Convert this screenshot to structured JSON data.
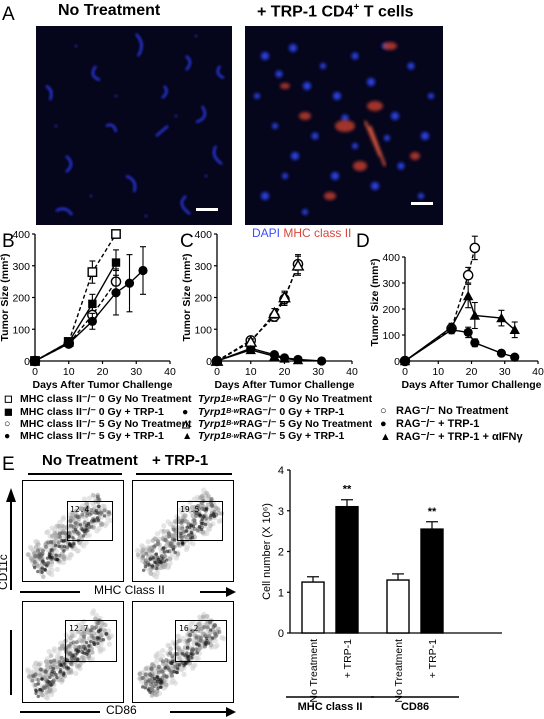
{
  "panel_a": {
    "letter": "A",
    "left_title": "No Treatment",
    "right_title_prefix": "+ TRP-1 CD4",
    "right_title_sup": "+",
    "right_title_suffix": " T cells",
    "stain_dapi": "DAPI",
    "stain_mhc": "MHC class II",
    "colors": {
      "dapi": "#3c4dff",
      "mhc": "#d8463a"
    }
  },
  "panel_b": {
    "letter": "B",
    "legend": [
      "MHC class II⁻/⁻ 0 Gy No Treatment",
      "MHC class II⁻/⁻ 0 Gy + TRP-1",
      "MHC class II⁻/⁻ 5 Gy No Treatment",
      "MHC class II⁻/⁻ 5 Gy + TRP-1"
    ]
  },
  "panel_c": {
    "letter": "C",
    "legend_prefix": "Tyrp1",
    "legend_sup": "B-w",
    "legend": [
      "RAG⁻/⁻ 0 Gy No Treatment",
      "RAG⁻/⁻ 0 Gy + TRP-1",
      "RAG⁻/⁻ 5 Gy No Treatment",
      "RAG⁻/⁻ 5 Gy + TRP-1"
    ]
  },
  "panel_d": {
    "letter": "D",
    "legend": [
      "RAG⁻/⁻ No Treatment",
      "RAG⁻/⁻ + TRP-1",
      "RAG⁻/⁻ + TRP-1 + αIFNγ"
    ]
  },
  "growth_axes": {
    "ylabel": "Tumor Size (mm²)",
    "xlabel": "Days After Tumor Challenge"
  },
  "panel_e": {
    "letter": "E",
    "col_no_treatment": "No Treatment",
    "col_trp1": "+ TRP-1",
    "ylabel_facs": "CD11c",
    "xlabel_top": "MHC Class II",
    "xlabel_bottom": "CD86",
    "gates": [
      "12.4",
      "19.5",
      "12.7",
      "16.2"
    ]
  },
  "chart_data": [
    {
      "type": "line",
      "panel": "B",
      "xlabel": "Days After Tumor Challenge",
      "ylabel": "Tumor Size (mm²)",
      "xlim": [
        0,
        40
      ],
      "ylim": [
        0,
        400
      ],
      "xticks": [
        0,
        10,
        20,
        30,
        40
      ],
      "yticks": [
        0,
        100,
        200,
        300,
        400
      ],
      "series": [
        {
          "name": "MHC class II⁻/⁻ 0 Gy No Treatment",
          "marker": "open-square",
          "dash": true,
          "x": [
            0,
            10,
            17,
            24
          ],
          "y": [
            0,
            60,
            280,
            400
          ],
          "err": [
            0,
            8,
            35,
            0
          ]
        },
        {
          "name": "MHC class II⁻/⁻ 0 Gy + TRP-1",
          "marker": "filled-square",
          "dash": false,
          "x": [
            0,
            10,
            17,
            24
          ],
          "y": [
            0,
            60,
            180,
            310
          ],
          "err": [
            0,
            8,
            30,
            40
          ]
        },
        {
          "name": "MHC class II⁻/⁻ 5 Gy No Treatment",
          "marker": "open-circle",
          "dash": true,
          "x": [
            0,
            10,
            17,
            24
          ],
          "y": [
            0,
            55,
            145,
            250
          ],
          "err": [
            0,
            8,
            25,
            40
          ]
        },
        {
          "name": "MHC class II⁻/⁻ 5 Gy + TRP-1",
          "marker": "filled-circle",
          "dash": false,
          "x": [
            0,
            10,
            17,
            24,
            28,
            32
          ],
          "y": [
            0,
            55,
            125,
            215,
            245,
            285
          ],
          "err": [
            0,
            8,
            25,
            70,
            90,
            75
          ]
        }
      ]
    },
    {
      "type": "line",
      "panel": "C",
      "xlabel": "Days After Tumor Challenge",
      "ylabel": "Tumor Size (mm²)",
      "xlim": [
        0,
        40
      ],
      "ylim": [
        0,
        400
      ],
      "xticks": [
        0,
        10,
        20,
        30,
        40
      ],
      "yticks": [
        0,
        100,
        200,
        300,
        400
      ],
      "series": [
        {
          "name": "Tyrp1 B-w RAG⁻/⁻ 0 Gy No Treatment",
          "marker": "open-circle",
          "dash": true,
          "x": [
            0,
            10,
            17,
            20,
            24
          ],
          "y": [
            0,
            65,
            140,
            195,
            305
          ],
          "err": [
            0,
            10,
            15,
            20,
            30
          ]
        },
        {
          "name": "Tyrp1 B-w RAG⁻/⁻ 0 Gy + TRP-1",
          "marker": "filled-circle",
          "dash": false,
          "x": [
            0,
            10,
            17,
            20,
            24,
            31
          ],
          "y": [
            0,
            40,
            20,
            10,
            5,
            0
          ],
          "err": [
            0,
            10,
            8,
            5,
            3,
            0
          ]
        },
        {
          "name": "Tyrp1 B-w RAG⁻/⁻ 5 Gy No Treatment",
          "marker": "open-triangle",
          "dash": true,
          "x": [
            0,
            10,
            17,
            20,
            24
          ],
          "y": [
            0,
            60,
            150,
            200,
            300
          ],
          "err": [
            0,
            10,
            15,
            20,
            30
          ]
        },
        {
          "name": "Tyrp1 B-w RAG⁻/⁻ 5 Gy + TRP-1",
          "marker": "filled-triangle",
          "dash": false,
          "x": [
            0,
            10,
            17,
            20,
            24
          ],
          "y": [
            0,
            35,
            15,
            8,
            3
          ],
          "err": [
            0,
            8,
            6,
            4,
            2
          ]
        }
      ]
    },
    {
      "type": "line",
      "panel": "D",
      "xlabel": "Days After Tumor Challenge",
      "ylabel": "Tumor Size (mm²)",
      "xlim": [
        0,
        40
      ],
      "ylim": [
        0,
        450
      ],
      "xticks": [
        0,
        10,
        20,
        30,
        40
      ],
      "yticks": [
        0,
        100,
        200,
        300,
        400
      ],
      "series": [
        {
          "name": "RAG⁻/⁻ No Treatment",
          "marker": "open-circle",
          "dash": true,
          "x": [
            0,
            14,
            19,
            21
          ],
          "y": [
            0,
            125,
            330,
            435
          ],
          "err": [
            0,
            15,
            30,
            45
          ]
        },
        {
          "name": "RAG⁻/⁻ + TRP-1",
          "marker": "filled-circle",
          "dash": false,
          "x": [
            0,
            14,
            19,
            21,
            29,
            33
          ],
          "y": [
            0,
            120,
            110,
            70,
            30,
            15
          ],
          "err": [
            0,
            15,
            20,
            15,
            10,
            5
          ]
        },
        {
          "name": "RAG⁻/⁻ + TRP-1 + αIFNγ",
          "marker": "filled-triangle",
          "dash": false,
          "x": [
            0,
            14,
            19,
            21,
            29,
            33
          ],
          "y": [
            0,
            130,
            250,
            175,
            165,
            120
          ],
          "err": [
            0,
            15,
            45,
            50,
            30,
            30
          ]
        }
      ]
    },
    {
      "type": "bar",
      "panel": "E",
      "ylabel": "Cell number (X 10⁶)",
      "ylim": [
        0,
        4
      ],
      "yticks": [
        0,
        1,
        2,
        3,
        4
      ],
      "categories": [
        "No Treatment",
        "+ TRP-1",
        "No Treatment",
        "+ TRP-1"
      ],
      "groups": [
        "MHC class II",
        "CD86"
      ],
      "values": [
        1.25,
        3.1,
        1.3,
        2.55
      ],
      "err": [
        0.13,
        0.17,
        0.15,
        0.18
      ],
      "fill": [
        "open",
        "filled",
        "open",
        "filled"
      ],
      "significance": [
        "",
        "**",
        "",
        "**"
      ]
    }
  ]
}
